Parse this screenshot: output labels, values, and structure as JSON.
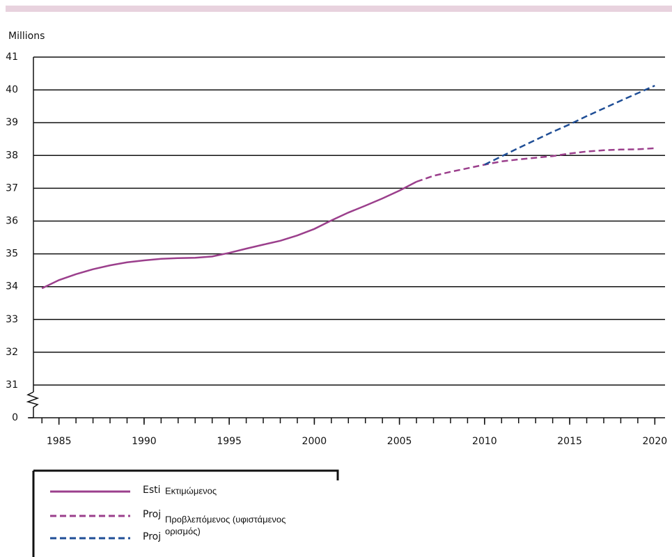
{
  "chart_data": {
    "type": "line",
    "y_axis_label": "Millions",
    "xlim": [
      1983.5,
      2020.6
    ],
    "xticks": [
      1985,
      1990,
      1995,
      2000,
      2005,
      2010,
      2015,
      2020
    ],
    "x_minor_step": 1,
    "ylim": [
      0,
      41
    ],
    "axis_break": [
      0,
      31
    ],
    "yticks": [
      0,
      31,
      32,
      33,
      34,
      35,
      36,
      37,
      38,
      39,
      40,
      41
    ],
    "grid": true,
    "series": [
      {
        "name": "Esti",
        "color": "#9b3f8c",
        "dash": false,
        "x": [
          1984,
          1985,
          1986,
          1987,
          1988,
          1989,
          1990,
          1991,
          1992,
          1993,
          1994,
          1995,
          1996,
          1997,
          1998,
          1999,
          2000,
          2001,
          2002,
          2003,
          2004,
          2005,
          2006
        ],
        "values": [
          33.95,
          34.2,
          34.38,
          34.53,
          34.65,
          34.74,
          34.8,
          34.85,
          34.87,
          34.88,
          34.92,
          35.03,
          35.16,
          35.28,
          35.4,
          35.56,
          35.76,
          36.02,
          36.26,
          36.47,
          36.69,
          36.93,
          37.2
        ]
      },
      {
        "name": "Proj",
        "color": "#9b3f8c",
        "dash": true,
        "x": [
          2006,
          2007,
          2008,
          2009,
          2010,
          2011,
          2012,
          2013,
          2014,
          2015,
          2016,
          2017,
          2018,
          2019,
          2020
        ],
        "values": [
          37.2,
          37.38,
          37.5,
          37.61,
          37.72,
          37.82,
          37.88,
          37.93,
          37.98,
          38.06,
          38.12,
          38.16,
          38.18,
          38.19,
          38.22
        ]
      },
      {
        "name": "Proj",
        "color": "#1f4e96",
        "dash": true,
        "x": [
          2010,
          2012,
          2014,
          2015,
          2016,
          2018,
          2020
        ],
        "values": [
          37.72,
          38.23,
          38.72,
          38.95,
          39.2,
          39.67,
          40.13
        ]
      }
    ],
    "legend_overlay": [
      "Εκτιμώμενος",
      "Προβλεπόμενος (υφιστάμενος",
      "ορισμός)"
    ]
  }
}
